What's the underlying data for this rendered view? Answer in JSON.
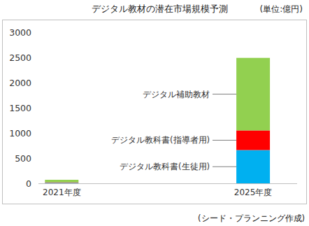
{
  "chart_data": {
    "type": "bar",
    "title": "デジタル教材の潜在市場規模予測",
    "subtitle": "(単位:億円)",
    "annotations": [
      "(シード・プランニング作成)"
    ],
    "categories": [
      "2021年度",
      "2025年度"
    ],
    "series": [
      {
        "name": "デジタル教科書(生徒用)",
        "color": "#00b0f0",
        "values": [
          10,
          660
        ]
      },
      {
        "name": "デジタル教科書(指導者用)",
        "color": "#ff0000",
        "values": [
          10,
          390
        ]
      },
      {
        "name": "デジタル補助教材",
        "color": "#92d050",
        "values": [
          50,
          1440
        ]
      }
    ],
    "stacked": true,
    "grid": false,
    "ylim": [
      0,
      3000
    ],
    "yticks": [
      0,
      500,
      1000,
      1500,
      2000,
      2500,
      3000
    ]
  }
}
